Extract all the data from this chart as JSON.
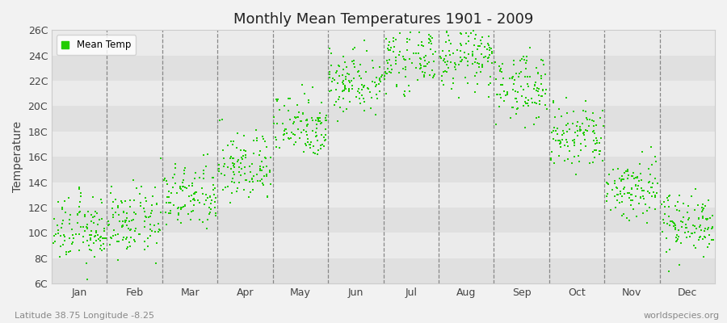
{
  "title": "Monthly Mean Temperatures 1901 - 2009",
  "ylabel": "Temperature",
  "xlabel_bottom_left": "Latitude 38.75 Longitude -8.25",
  "xlabel_bottom_right": "worldspecies.org",
  "legend_label": "Mean Temp",
  "dot_color": "#22cc00",
  "background_color": "#f2f2f2",
  "plot_bg_color": "#f2f2f2",
  "stripe_dark": "#e0e0e0",
  "stripe_light": "#ebebeb",
  "grid_color": "#888888",
  "ytick_labels": [
    "6C",
    "8C",
    "10C",
    "12C",
    "14C",
    "16C",
    "18C",
    "20C",
    "22C",
    "24C",
    "26C"
  ],
  "ytick_values": [
    6,
    8,
    10,
    12,
    14,
    16,
    18,
    20,
    22,
    24,
    26
  ],
  "ylim": [
    6,
    26
  ],
  "months": [
    "Jan",
    "Feb",
    "Mar",
    "Apr",
    "May",
    "Jun",
    "Jul",
    "Aug",
    "Sep",
    "Oct",
    "Nov",
    "Dec"
  ],
  "num_years": 109,
  "start_year": 1901,
  "end_year": 2009,
  "mean_temps": [
    10.2,
    10.8,
    12.8,
    15.2,
    18.5,
    22.0,
    23.8,
    23.8,
    21.5,
    17.5,
    13.5,
    10.8
  ],
  "std_temps": [
    1.3,
    1.3,
    1.3,
    1.4,
    1.3,
    1.3,
    1.2,
    1.2,
    1.3,
    1.4,
    1.3,
    1.2
  ],
  "dot_size": 4,
  "title_fontsize": 13,
  "tick_fontsize": 9,
  "ylabel_fontsize": 10
}
